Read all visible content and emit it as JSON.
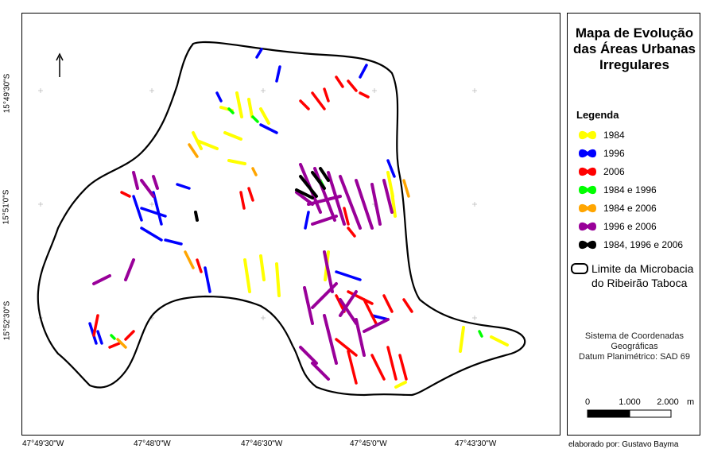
{
  "map": {
    "lat_labels": [
      "15°49'30\"S",
      "15°51'0\"S",
      "15°52'30\"S"
    ],
    "lon_labels": [
      "47°49'30\"W",
      "47°48'0\"W",
      "47°46'30\"W",
      "47°45'0\"W",
      "47°43'30\"W"
    ],
    "north_arrow": "north-arrow-icon"
  },
  "legend": {
    "title": "Mapa de Evolução das Áreas Urbanas Irregulares",
    "heading": "Legenda",
    "items": [
      {
        "label": "1984",
        "color": "#ffff00"
      },
      {
        "label": "1996",
        "color": "#0000ff"
      },
      {
        "label": "2006",
        "color": "#ff0000"
      },
      {
        "label": "1984 e 1996",
        "color": "#00ff00"
      },
      {
        "label": "1984 e 2006",
        "color": "#ffa500"
      },
      {
        "label": "1996 e 2006",
        "color": "#990099"
      },
      {
        "label": "1984, 1996 e 2006",
        "color": "#000000"
      }
    ],
    "boundary_label_1": "Limite da Microbacia",
    "boundary_label_2": "do Ribeirão Taboca",
    "crs_line_1": "Sistema de Coordenadas",
    "crs_line_2": "Geográficas",
    "crs_line_3": "Datum Planimétrico: SAD 69",
    "scale": {
      "tick_0": "0",
      "tick_1": "1.000",
      "tick_2": "2.000",
      "unit": "m"
    }
  },
  "credit": "elaborado por: Gustavo Bayma"
}
